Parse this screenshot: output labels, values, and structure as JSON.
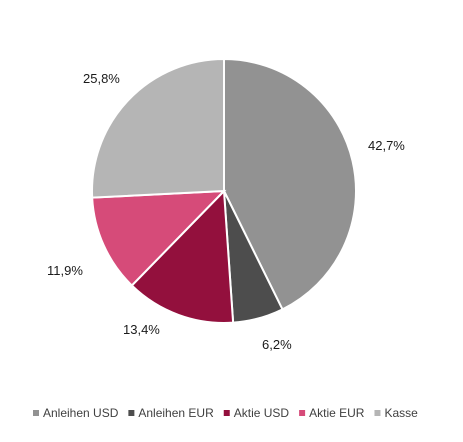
{
  "chart_data": {
    "type": "pie",
    "title": "",
    "slices": [
      {
        "label": "Anleihen USD",
        "value": 42.7,
        "display": "42,7%",
        "color": "#929292"
      },
      {
        "label": "Anleihen EUR",
        "value": 6.2,
        "display": "6,2%",
        "color": "#4d4d4d"
      },
      {
        "label": "Aktie USD",
        "value": 13.4,
        "display": "13,4%",
        "color": "#93103d"
      },
      {
        "label": "Aktie EUR",
        "value": 11.9,
        "display": "11,9%",
        "color": "#d64b79"
      },
      {
        "label": "Kasse",
        "value": 25.8,
        "display": "25,8%",
        "color": "#b5b5b5"
      }
    ],
    "legend_position": "bottom",
    "start_angle": "12 o'clock",
    "direction": "clockwise"
  }
}
